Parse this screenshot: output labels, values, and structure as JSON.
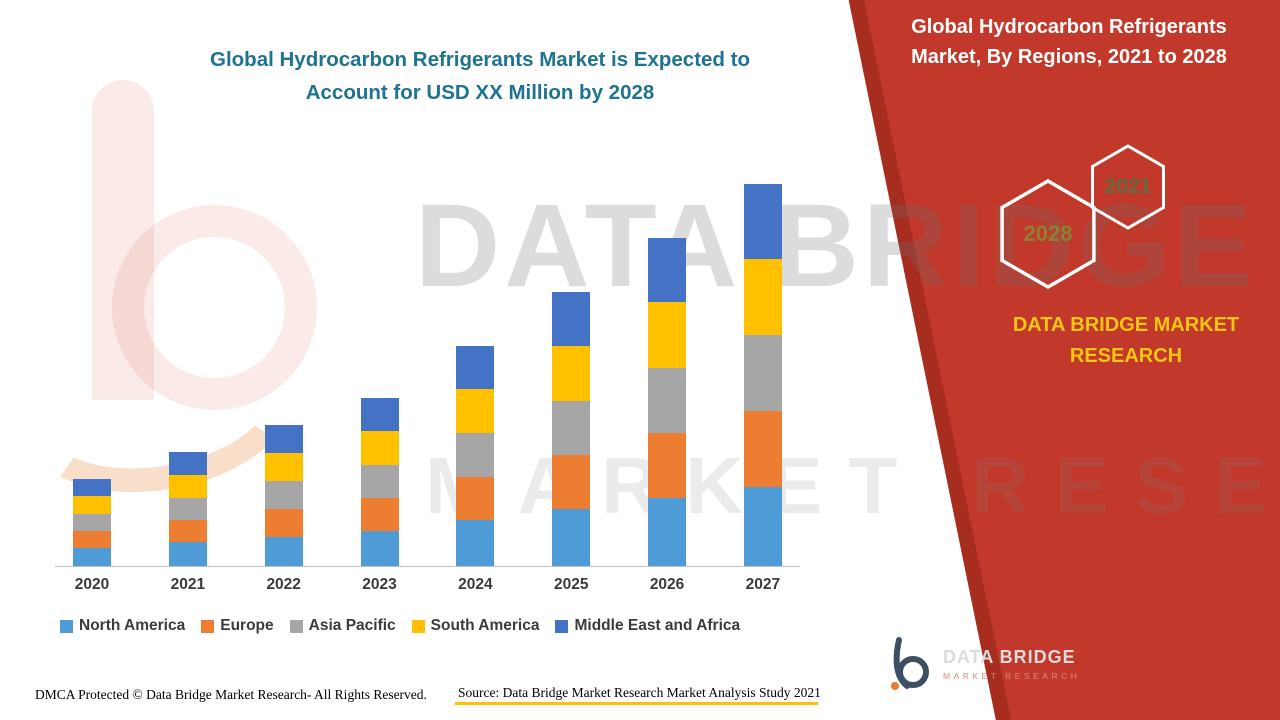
{
  "header": {
    "main_title_line1": "Global Hydrocarbon Refrigerants Market is Expected to",
    "main_title_line2": "Account for USD XX Million by 2028"
  },
  "footer": {
    "dmca": "DMCA Protected © Data Bridge Market Research- All Rights Reserved.",
    "source": "Source: Data Bridge Market Research Market Analysis Study 2021"
  },
  "right_panel": {
    "title_line1": "Global Hydrocarbon Refrigerants",
    "title_line2": "Market, By Regions, 2021 to 2028",
    "hex_year_front": "2028",
    "hex_year_back": "2021",
    "brand_line1": "DATA BRIDGE MARKET",
    "brand_line2": "RESEARCH"
  },
  "logo": {
    "name": "DATA BRIDGE",
    "subtitle": "MARKET RESEARCH"
  },
  "watermark": {
    "line1": "DATA BRIDGE",
    "line2": "MARKET RESEARCH"
  },
  "colors": {
    "panel_red": "#C2392B",
    "panel_red_dark": "#A72D1F",
    "title_teal": "#1E7391",
    "brand_yellow": "#F2C414",
    "hex_front_year": "#8A8231",
    "hex_back_year": "#5F6D44",
    "source_underline": "#FFC000"
  },
  "chart_data": {
    "type": "bar",
    "stacked": true,
    "title": "Global Hydrocarbon Refrigerants Market is Expected to Account for USD XX Million by 2028",
    "xlabel": "",
    "ylabel": "",
    "y_axis_shown": false,
    "grid": false,
    "legend_position": "bottom",
    "value_note": "actual USD values not disclosed on chart (shown as XX); heights estimated in relative units",
    "ylim": [
      0,
      400
    ],
    "categories": [
      "2020",
      "2021",
      "2022",
      "2023",
      "2024",
      "2025",
      "2026",
      "2027"
    ],
    "series": [
      {
        "name": "North America",
        "color": "#4F9BD5",
        "values": [
          18,
          24,
          29,
          35,
          46,
          57,
          68,
          79
        ]
      },
      {
        "name": "Europe",
        "color": "#ED7D31",
        "values": [
          17,
          22,
          28,
          33,
          43,
          54,
          65,
          76
        ]
      },
      {
        "name": "Asia Pacific",
        "color": "#A6A6A6",
        "values": [
          17,
          22,
          28,
          33,
          44,
          54,
          65,
          76
        ]
      },
      {
        "name": "South America",
        "color": "#FFC000",
        "values": [
          18,
          23,
          28,
          34,
          44,
          55,
          66,
          76
        ]
      },
      {
        "name": "Middle East and Africa",
        "color": "#4472C4",
        "values": [
          17,
          23,
          28,
          33,
          43,
          54,
          64,
          75
        ]
      }
    ]
  }
}
